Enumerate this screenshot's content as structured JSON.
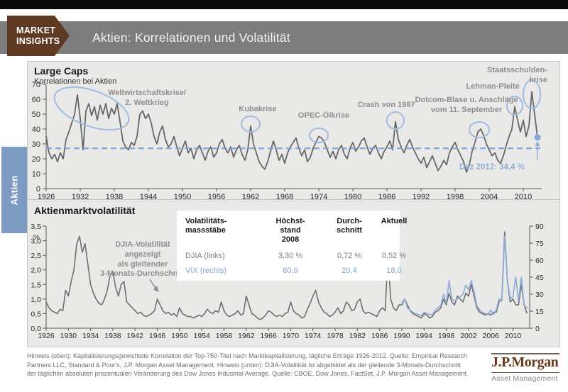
{
  "header": {
    "badge_line1": "MARKET",
    "badge_line2": "INSIGHTS",
    "title": "Aktien: Korrelationen und Volatilität"
  },
  "sidebar": {
    "tab_label": "Aktien"
  },
  "colors": {
    "accent_blue": "#7E9CC5",
    "dashed_blue": "#7DA0D8",
    "ellipse_blue": "#A0BBE2",
    "vix_blue": "#8CABD9",
    "line_gray": "#6B6B6B",
    "brand_brown": "#5F3A22",
    "header_gray": "#7D7D7D"
  },
  "footer": {
    "note": "Hinweis (oben): Kapitalisierungsgewichtete Korrelation der Top-750-Titel nach Marktkapitalisierung, tägliche Erträge 1926-2012. Quelle: Empirical Research Partners LLC, Standard & Poor's, J.P. Morgan Asset Management. Hinweis (unten): DJIA-Volatilität ist abgebildet als der gleitende 3-Monats-Durchschnitt der täglichen absoluten prozentualen Veränderung des Dow Jones Industrial Average. Quelle: CBOE, Dow Jones, FactSet, J.P. Morgan Asset Management.",
    "logo_name": "J.P.Morgan",
    "logo_sub": "Asset Management"
  },
  "chart_data": [
    {
      "type": "line",
      "title": "Large Caps",
      "subtitle": "Korrelationen bei Aktien",
      "x_start": 1926,
      "x_step": 0.5,
      "xlim": [
        1926,
        2013
      ],
      "ylim": [
        0,
        70
      ],
      "yticks": [
        0,
        10,
        20,
        30,
        40,
        50,
        60,
        70
      ],
      "xticks": [
        1926,
        1932,
        1938,
        1944,
        1950,
        1956,
        1962,
        1968,
        1974,
        1980,
        1986,
        1992,
        1998,
        2004,
        2010
      ],
      "average_line": 27,
      "last_point": {
        "x": 2012.5,
        "y": 34.4,
        "label": "Dez 2012: 34,4 %"
      },
      "series": [
        {
          "name": "Korrelationen bei Aktien",
          "color": "#676767",
          "values": [
            35,
            24,
            20,
            23,
            18,
            24,
            20,
            33,
            38,
            44,
            50,
            63,
            47,
            26,
            52,
            57,
            49,
            55,
            46,
            56,
            50,
            57,
            47,
            54,
            50,
            57,
            45,
            32,
            28,
            26,
            31,
            29,
            35,
            50,
            52,
            47,
            50,
            44,
            35,
            30,
            38,
            42,
            33,
            28,
            30,
            35,
            28,
            22,
            27,
            32,
            24,
            27,
            20,
            26,
            29,
            24,
            19,
            25,
            28,
            21,
            24,
            30,
            33,
            27,
            24,
            28,
            21,
            26,
            29,
            23,
            19,
            26,
            42,
            30,
            24,
            18,
            15,
            13,
            18,
            25,
            32,
            26,
            19,
            23,
            17,
            24,
            28,
            31,
            34,
            27,
            22,
            26,
            18,
            21,
            27,
            31,
            35,
            34,
            31,
            26,
            21,
            25,
            20,
            26,
            29,
            23,
            20,
            27,
            31,
            25,
            28,
            32,
            34,
            28,
            23,
            27,
            29,
            24,
            20,
            25,
            28,
            32,
            26,
            45,
            33,
            28,
            24,
            29,
            33,
            28,
            24,
            20,
            17,
            21,
            14,
            18,
            22,
            17,
            12,
            15,
            19,
            16,
            24,
            28,
            31,
            26,
            22,
            18,
            11,
            16,
            25,
            31,
            38,
            40,
            36,
            30,
            26,
            22,
            24,
            19,
            17,
            22,
            29,
            35,
            40,
            55,
            46,
            38,
            46,
            35,
            42,
            65,
            50,
            34.4
          ]
        }
      ],
      "annotations": [
        {
          "id": "weltwirtschaftskrise",
          "text": "Weltwirtschaftskrise/\n2. Weltkrieg"
        },
        {
          "id": "kubakrise",
          "text": "Kubakrise"
        },
        {
          "id": "opec",
          "text": "OPEC-Ölkrise"
        },
        {
          "id": "crash1987",
          "text": "Crash von 1987"
        },
        {
          "id": "dotcom",
          "text": "Dotcom-Blase u. Anschläge\nvom 11. September"
        },
        {
          "id": "lehman",
          "text": "Lehman-Pleite"
        },
        {
          "id": "staatsschulden",
          "text": "Staatsschulden-\nkrise"
        }
      ]
    },
    {
      "type": "line",
      "title": "Aktienmarktvolatilität",
      "xlim": [
        1926,
        2013
      ],
      "ylim_left": [
        0,
        3.5
      ],
      "ylim_right": [
        0,
        90
      ],
      "ylabel_left": "%",
      "yticks_left": [
        "0,0",
        "0,5",
        "1,0",
        "1,5",
        "2,0",
        "2,5",
        "3,0",
        "3,5"
      ],
      "yticks_right": [
        0,
        15,
        30,
        45,
        60,
        75,
        90
      ],
      "xticks": [
        1926,
        1930,
        1934,
        1938,
        1942,
        1946,
        1950,
        1954,
        1958,
        1962,
        1966,
        1970,
        1974,
        1978,
        1982,
        1986,
        1990,
        1994,
        1998,
        2002,
        2006,
        2010
      ],
      "annotation": "DJIA-Volatilität\nangezeigt\nals gleitender\n3-Monats-Durchschnitt",
      "series": [
        {
          "name": "DJIA (links)",
          "axis": "left",
          "color": "#6F6F6F",
          "x_start": 1926,
          "x_step": 0.5,
          "values": [
            0.9,
            0.7,
            0.6,
            0.55,
            0.5,
            0.65,
            0.6,
            1.3,
            1.1,
            1.6,
            2.0,
            2.9,
            3.15,
            2.6,
            2.9,
            2.2,
            1.5,
            1.2,
            1.0,
            0.85,
            0.8,
            1.0,
            1.3,
            1.8,
            1.95,
            1.4,
            1.1,
            1.5,
            1.6,
            0.9,
            0.8,
            0.7,
            0.6,
            0.5,
            0.55,
            0.45,
            0.4,
            0.45,
            0.5,
            0.6,
            1.0,
            0.8,
            0.6,
            0.5,
            0.55,
            0.45,
            0.5,
            0.4,
            0.7,
            0.5,
            0.45,
            0.4,
            0.4,
            0.35,
            0.4,
            0.45,
            0.4,
            0.5,
            0.65,
            0.55,
            0.5,
            0.6,
            0.55,
            0.9,
            0.6,
            0.45,
            0.4,
            0.45,
            0.5,
            0.6,
            0.45,
            0.5,
            1.1,
            0.8,
            0.5,
            0.45,
            0.35,
            0.3,
            0.35,
            0.45,
            0.6,
            0.55,
            0.45,
            0.4,
            0.45,
            0.4,
            0.5,
            0.55,
            0.9,
            0.6,
            0.5,
            0.45,
            0.35,
            0.4,
            0.65,
            0.85,
            1.1,
            1.3,
            0.9,
            0.7,
            0.55,
            0.5,
            0.4,
            0.45,
            0.55,
            0.7,
            0.5,
            0.6,
            0.9,
            0.8,
            0.6,
            0.65,
            0.9,
            1.0,
            0.6,
            0.5,
            0.55,
            0.5,
            0.45,
            0.4,
            0.6,
            0.7,
            0.6,
            2.5,
            1.0,
            0.7,
            0.6,
            0.8,
            0.8,
            1.0,
            0.8,
            0.6,
            0.5,
            0.45,
            0.4,
            0.35,
            0.5,
            0.45,
            0.35,
            0.4,
            0.55,
            0.6,
            0.7,
            1.0,
            0.8,
            1.2,
            0.9,
            0.8,
            1.1,
            1.0,
            0.9,
            1.2,
            1.1,
            1.5,
            1.1,
            0.7,
            0.55,
            0.5,
            0.45,
            0.5,
            0.45,
            0.55,
            0.55,
            0.9,
            1.0,
            3.3,
            1.6,
            0.9,
            1.0,
            0.8,
            0.8,
            1.5,
            0.8,
            0.52
          ]
        },
        {
          "name": "VIX (rechts)",
          "axis": "right",
          "color": "#8CABD9",
          "x_start": 1990,
          "x_step": 0.5,
          "values": [
            22,
            26,
            18,
            16,
            14,
            13,
            12,
            11,
            14,
            13,
            12,
            12,
            16,
            18,
            20,
            30,
            22,
            42,
            26,
            24,
            26,
            28,
            30,
            38,
            34,
            42,
            32,
            20,
            16,
            14,
            13,
            12,
            16,
            12,
            16,
            26,
            24,
            80.9,
            42,
            26,
            28,
            45,
            24,
            45,
            20,
            18
          ]
        }
      ],
      "table": {
        "headers": [
          "Volatilitäts-\nmassstäbe",
          "Höchst-\nstand\n2008",
          "Durch-\nschnitt",
          "Aktuell"
        ],
        "rows": [
          {
            "label": "DJIA (links)",
            "values": [
              "3,30 %",
              "0,72 %",
              "0,52 %"
            ]
          },
          {
            "label": "VIX (rechts)",
            "values": [
              "80,9",
              "20,4",
              "18,0"
            ]
          }
        ]
      }
    }
  ]
}
